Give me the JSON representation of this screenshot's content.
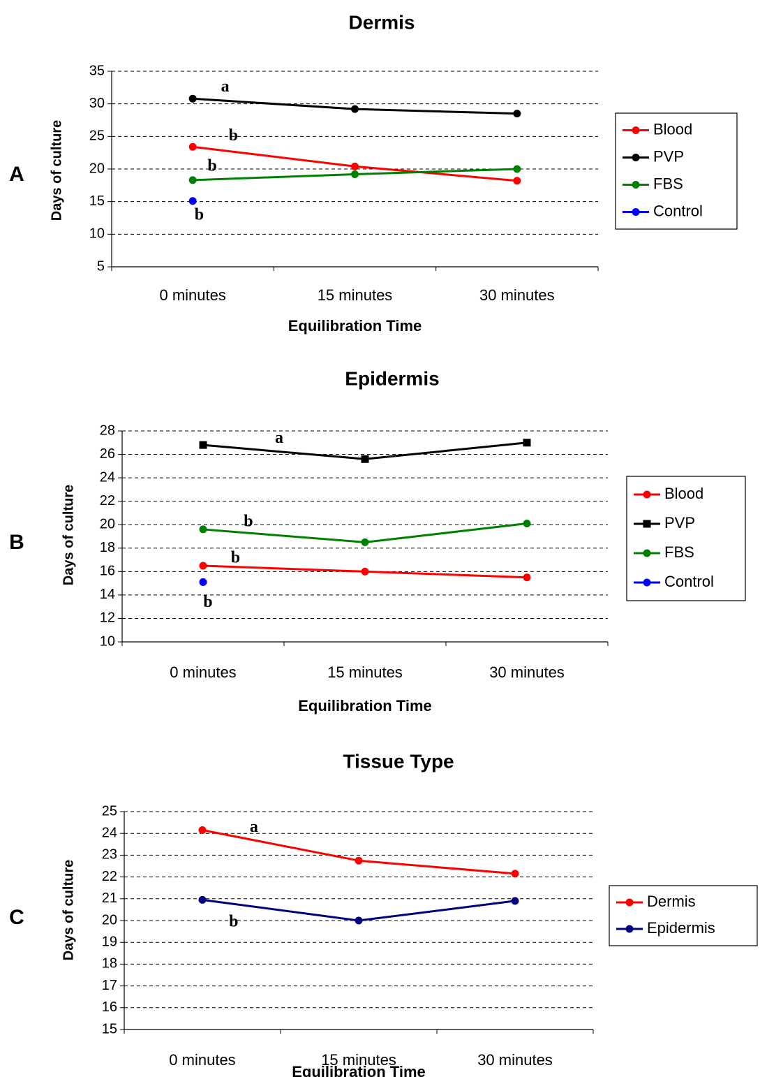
{
  "chart_data": [
    {
      "type": "line",
      "panel_label": "A",
      "title": "Dermis",
      "xlabel": "Equilibration Time",
      "ylabel": "Days of culture",
      "categories": [
        "0 minutes",
        "15 minutes",
        "30 minutes"
      ],
      "ylim": [
        5,
        35
      ],
      "yticks": [
        5,
        10,
        15,
        20,
        25,
        30,
        35
      ],
      "grid": "horizontal dashed",
      "legend_position": "right",
      "series": [
        {
          "name": "Blood",
          "color": "#ff0000",
          "marker": "circle",
          "values": [
            23.4,
            20.4,
            18.2
          ]
        },
        {
          "name": "PVP",
          "color": "#000000",
          "marker": "circle",
          "values": [
            30.8,
            29.2,
            28.5
          ]
        },
        {
          "name": "FBS",
          "color": "#008000",
          "marker": "circle",
          "values": [
            18.3,
            19.2,
            20.0
          ]
        },
        {
          "name": "Control",
          "color": "#0000ff",
          "marker": "circle",
          "values": [
            15.1,
            null,
            null
          ]
        }
      ],
      "annotations": [
        {
          "text": "a",
          "category": 0.2,
          "y": 32.5
        },
        {
          "text": "b",
          "category": 0.25,
          "y": 25.0
        },
        {
          "text": "b",
          "category": 0.12,
          "y": 20.3
        },
        {
          "text": "b",
          "category": 0.04,
          "y": 12.8
        }
      ]
    },
    {
      "type": "line",
      "panel_label": "B",
      "title": "Epidermis",
      "xlabel": "Equilibration Time",
      "ylabel": "Days of culture",
      "categories": [
        "0 minutes",
        "15 minutes",
        "30 minutes"
      ],
      "ylim": [
        10,
        28
      ],
      "yticks": [
        10,
        12,
        14,
        16,
        18,
        20,
        22,
        24,
        26,
        28
      ],
      "grid": "horizontal dashed",
      "legend_position": "right",
      "series": [
        {
          "name": "Blood",
          "color": "#ff0000",
          "marker": "circle",
          "values": [
            16.5,
            16.0,
            15.5
          ]
        },
        {
          "name": "PVP",
          "color": "#000000",
          "marker": "square",
          "values": [
            26.8,
            25.6,
            27.0
          ]
        },
        {
          "name": "FBS",
          "color": "#008000",
          "marker": "circle",
          "values": [
            19.6,
            18.5,
            20.1
          ]
        },
        {
          "name": "Control",
          "color": "#0000ff",
          "marker": "circle",
          "values": [
            15.1,
            null,
            null
          ]
        }
      ],
      "annotations": [
        {
          "text": "a",
          "category": 0.47,
          "y": 27.3
        },
        {
          "text": "b",
          "category": 0.28,
          "y": 20.2
        },
        {
          "text": "b",
          "category": 0.2,
          "y": 17.1
        },
        {
          "text": "b",
          "category": 0.03,
          "y": 13.3
        }
      ]
    },
    {
      "type": "line",
      "panel_label": "C",
      "title": "Tissue Type",
      "xlabel": "Equilibration Time",
      "ylabel": "Days of culture",
      "categories": [
        "0 minutes",
        "15 minutes",
        "30 minutes"
      ],
      "ylim": [
        15,
        25
      ],
      "yticks": [
        15,
        16,
        17,
        18,
        19,
        20,
        21,
        22,
        23,
        24,
        25
      ],
      "grid": "horizontal dashed",
      "legend_position": "right",
      "series": [
        {
          "name": "Dermis",
          "color": "#ff0000",
          "marker": "circle",
          "values": [
            24.15,
            22.75,
            22.15
          ]
        },
        {
          "name": "Epidermis",
          "color": "#000080",
          "marker": "circle",
          "values": [
            20.95,
            20.0,
            20.9
          ]
        }
      ],
      "annotations": [
        {
          "text": "a",
          "category": 0.33,
          "y": 24.25
        },
        {
          "text": "b",
          "category": 0.2,
          "y": 19.9
        }
      ]
    }
  ]
}
